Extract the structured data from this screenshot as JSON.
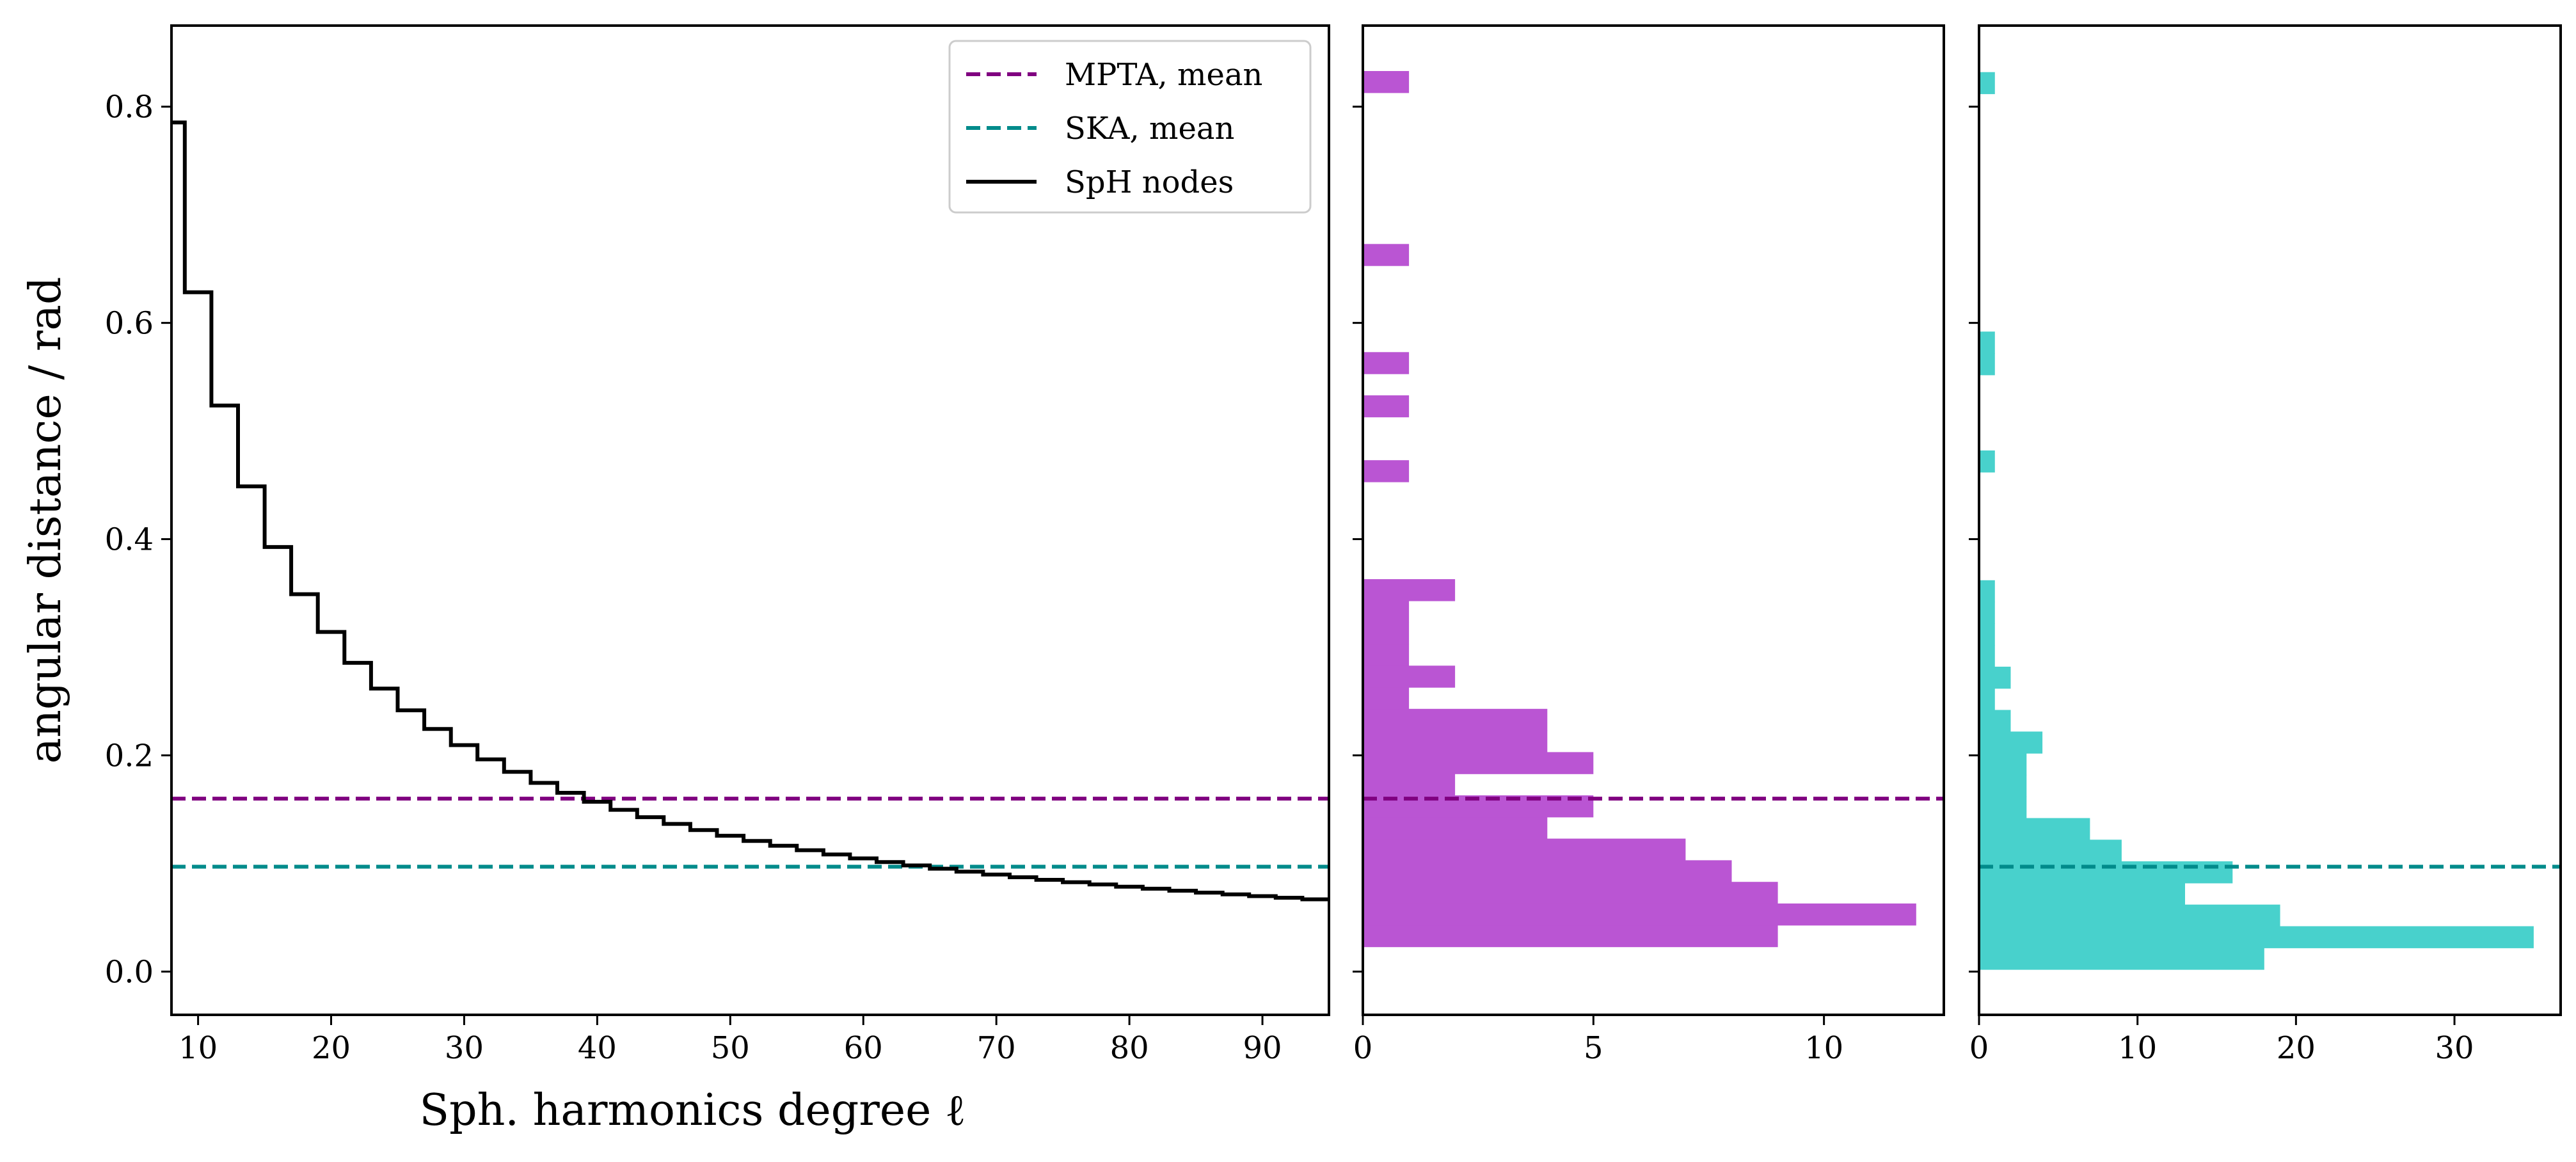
{
  "chart_data": [
    {
      "type": "line",
      "panel": "left",
      "xlabel": "Sph. harmonics degree ℓ",
      "ylabel": "angular distance / rad",
      "xlim": [
        8,
        95
      ],
      "ylim": [
        -0.04,
        0.875
      ],
      "xticks": [
        10,
        20,
        30,
        40,
        50,
        60,
        70,
        80,
        90
      ],
      "yticks": [
        0.0,
        0.2,
        0.4,
        0.6,
        0.8
      ],
      "ytick_labels": [
        "0.0",
        "0.2",
        "0.4",
        "0.6",
        "0.8"
      ],
      "grid": false,
      "legend": {
        "position": "top-right",
        "entries": [
          "MPTA, mean",
          "SKA, mean",
          "SpH nodes"
        ]
      },
      "series": [
        {
          "name": "MPTA, mean",
          "style": "dashed",
          "color": "#800080",
          "y": 0.16
        },
        {
          "name": "SKA, mean",
          "style": "dashed",
          "color": "#008b8b",
          "y": 0.097
        },
        {
          "name": "SpH nodes",
          "style": "step",
          "color": "#000000",
          "formula": "2*pi/L rounded up to even L (L = floor(l/2)*2 + 1 steps)",
          "x_start": 8,
          "x_end": 95
        }
      ]
    },
    {
      "type": "bar",
      "orientation": "horizontal",
      "panel": "middle",
      "name": "MPTA histogram",
      "color": "#ba55d3",
      "xlim": [
        0,
        12.6
      ],
      "xticks": [
        0,
        5,
        10
      ],
      "ylim": [
        -0.04,
        0.875
      ],
      "mean_line": {
        "y": 0.16,
        "color": "#800080"
      },
      "bins": [
        {
          "y0": 0.023,
          "y1": 0.043,
          "count": 9
        },
        {
          "y0": 0.043,
          "y1": 0.063,
          "count": 12
        },
        {
          "y0": 0.063,
          "y1": 0.083,
          "count": 9
        },
        {
          "y0": 0.083,
          "y1": 0.103,
          "count": 8
        },
        {
          "y0": 0.103,
          "y1": 0.123,
          "count": 7
        },
        {
          "y0": 0.123,
          "y1": 0.143,
          "count": 4
        },
        {
          "y0": 0.143,
          "y1": 0.163,
          "count": 5
        },
        {
          "y0": 0.163,
          "y1": 0.183,
          "count": 2
        },
        {
          "y0": 0.183,
          "y1": 0.203,
          "count": 5
        },
        {
          "y0": 0.203,
          "y1": 0.223,
          "count": 4
        },
        {
          "y0": 0.223,
          "y1": 0.243,
          "count": 4
        },
        {
          "y0": 0.243,
          "y1": 0.263,
          "count": 1
        },
        {
          "y0": 0.263,
          "y1": 0.283,
          "count": 2
        },
        {
          "y0": 0.283,
          "y1": 0.303,
          "count": 1
        },
        {
          "y0": 0.303,
          "y1": 0.323,
          "count": 1
        },
        {
          "y0": 0.323,
          "y1": 0.343,
          "count": 1
        },
        {
          "y0": 0.343,
          "y1": 0.363,
          "count": 2
        },
        {
          "y0": 0.453,
          "y1": 0.473,
          "count": 1
        },
        {
          "y0": 0.513,
          "y1": 0.533,
          "count": 1
        },
        {
          "y0": 0.553,
          "y1": 0.573,
          "count": 1
        },
        {
          "y0": 0.653,
          "y1": 0.673,
          "count": 1
        },
        {
          "y0": 0.813,
          "y1": 0.833,
          "count": 1
        }
      ]
    },
    {
      "type": "bar",
      "orientation": "horizontal",
      "panel": "right",
      "name": "SKA histogram",
      "color": "#48d1cc",
      "xlim": [
        0,
        36.7
      ],
      "xticks": [
        0,
        10,
        20,
        30
      ],
      "ylim": [
        -0.04,
        0.875
      ],
      "mean_line": {
        "y": 0.097,
        "color": "#008b8b"
      },
      "bins": [
        {
          "y0": 0.002,
          "y1": 0.022,
          "count": 18
        },
        {
          "y0": 0.022,
          "y1": 0.042,
          "count": 35
        },
        {
          "y0": 0.042,
          "y1": 0.062,
          "count": 19
        },
        {
          "y0": 0.062,
          "y1": 0.082,
          "count": 13
        },
        {
          "y0": 0.082,
          "y1": 0.102,
          "count": 16
        },
        {
          "y0": 0.102,
          "y1": 0.122,
          "count": 9
        },
        {
          "y0": 0.122,
          "y1": 0.142,
          "count": 7
        },
        {
          "y0": 0.142,
          "y1": 0.162,
          "count": 3
        },
        {
          "y0": 0.162,
          "y1": 0.182,
          "count": 3
        },
        {
          "y0": 0.182,
          "y1": 0.202,
          "count": 3
        },
        {
          "y0": 0.202,
          "y1": 0.222,
          "count": 4
        },
        {
          "y0": 0.222,
          "y1": 0.242,
          "count": 2
        },
        {
          "y0": 0.242,
          "y1": 0.262,
          "count": 1
        },
        {
          "y0": 0.262,
          "y1": 0.282,
          "count": 2
        },
        {
          "y0": 0.282,
          "y1": 0.302,
          "count": 1
        },
        {
          "y0": 0.302,
          "y1": 0.322,
          "count": 1
        },
        {
          "y0": 0.322,
          "y1": 0.342,
          "count": 1
        },
        {
          "y0": 0.342,
          "y1": 0.362,
          "count": 1
        },
        {
          "y0": 0.462,
          "y1": 0.482,
          "count": 1
        },
        {
          "y0": 0.552,
          "y1": 0.572,
          "count": 1
        },
        {
          "y0": 0.572,
          "y1": 0.592,
          "count": 1
        },
        {
          "y0": 0.812,
          "y1": 0.832,
          "count": 1
        }
      ]
    }
  ]
}
